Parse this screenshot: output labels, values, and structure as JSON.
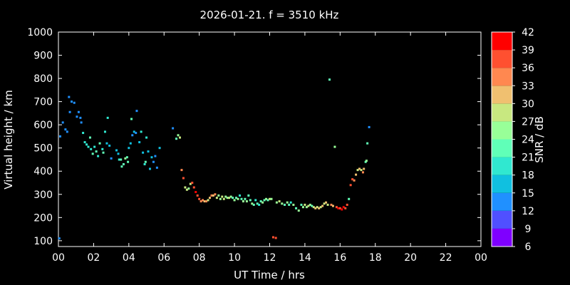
{
  "chart_data": {
    "type": "scatter",
    "title": "2026-01-21. f = 3510 kHz",
    "xlabel": "UT Time / hrs",
    "ylabel": "Virtual height / km",
    "colorbar_label": "SNR / dB",
    "xlim": [
      0,
      24
    ],
    "ylim": [
      75,
      1000
    ],
    "x_ticks": [
      "00",
      "02",
      "04",
      "06",
      "08",
      "10",
      "12",
      "14",
      "16",
      "18",
      "20",
      "22",
      "00"
    ],
    "y_ticks": [
      "100",
      "200",
      "300",
      "400",
      "500",
      "600",
      "700",
      "800",
      "900",
      "1000"
    ],
    "colorbar_ticks": [
      "6",
      "9",
      "12",
      "15",
      "18",
      "21",
      "24",
      "27",
      "30",
      "33",
      "36",
      "39",
      "42"
    ],
    "colorbar_range": [
      6,
      42
    ],
    "grid": false,
    "points": [
      {
        "x": 0.05,
        "y": 110,
        "snr": 12
      },
      {
        "x": 0.1,
        "y": 550,
        "snr": 12
      },
      {
        "x": 0.25,
        "y": 610,
        "snr": 12
      },
      {
        "x": 0.4,
        "y": 580,
        "snr": 12
      },
      {
        "x": 0.5,
        "y": 570,
        "snr": 12
      },
      {
        "x": 0.6,
        "y": 720,
        "snr": 12
      },
      {
        "x": 0.65,
        "y": 655,
        "snr": 12
      },
      {
        "x": 0.75,
        "y": 700,
        "snr": 12
      },
      {
        "x": 0.9,
        "y": 695,
        "snr": 12
      },
      {
        "x": 1.05,
        "y": 635,
        "snr": 12
      },
      {
        "x": 1.15,
        "y": 655,
        "snr": 12
      },
      {
        "x": 1.25,
        "y": 630,
        "snr": 12
      },
      {
        "x": 1.3,
        "y": 610,
        "snr": 12
      },
      {
        "x": 1.4,
        "y": 565,
        "snr": 18
      },
      {
        "x": 1.5,
        "y": 525,
        "snr": 18
      },
      {
        "x": 1.6,
        "y": 515,
        "snr": 18
      },
      {
        "x": 1.7,
        "y": 505,
        "snr": 18
      },
      {
        "x": 1.8,
        "y": 545,
        "snr": 21
      },
      {
        "x": 1.85,
        "y": 495,
        "snr": 18
      },
      {
        "x": 1.95,
        "y": 475,
        "snr": 21
      },
      {
        "x": 2.05,
        "y": 505,
        "snr": 18
      },
      {
        "x": 2.15,
        "y": 485,
        "snr": 21
      },
      {
        "x": 2.25,
        "y": 465,
        "snr": 18
      },
      {
        "x": 2.35,
        "y": 520,
        "snr": 21
      },
      {
        "x": 2.5,
        "y": 495,
        "snr": 18
      },
      {
        "x": 2.55,
        "y": 480,
        "snr": 21
      },
      {
        "x": 2.65,
        "y": 570,
        "snr": 18
      },
      {
        "x": 2.75,
        "y": 520,
        "snr": 15
      },
      {
        "x": 2.8,
        "y": 630,
        "snr": 18
      },
      {
        "x": 2.9,
        "y": 510,
        "snr": 15
      },
      {
        "x": 3.0,
        "y": 455,
        "snr": 12
      },
      {
        "x": 3.3,
        "y": 490,
        "snr": 15
      },
      {
        "x": 3.4,
        "y": 475,
        "snr": 15
      },
      {
        "x": 3.45,
        "y": 450,
        "snr": 18
      },
      {
        "x": 3.55,
        "y": 450,
        "snr": 21
      },
      {
        "x": 3.6,
        "y": 420,
        "snr": 21
      },
      {
        "x": 3.7,
        "y": 430,
        "snr": 21
      },
      {
        "x": 3.8,
        "y": 455,
        "snr": 24
      },
      {
        "x": 3.9,
        "y": 460,
        "snr": 21
      },
      {
        "x": 3.95,
        "y": 440,
        "snr": 21
      },
      {
        "x": 4.0,
        "y": 500,
        "snr": 15
      },
      {
        "x": 4.1,
        "y": 520,
        "snr": 15
      },
      {
        "x": 4.15,
        "y": 625,
        "snr": 21
      },
      {
        "x": 4.2,
        "y": 555,
        "snr": 12
      },
      {
        "x": 4.3,
        "y": 570,
        "snr": 15
      },
      {
        "x": 4.4,
        "y": 565,
        "snr": 12
      },
      {
        "x": 4.45,
        "y": 660,
        "snr": 12
      },
      {
        "x": 4.6,
        "y": 525,
        "snr": 15
      },
      {
        "x": 4.7,
        "y": 570,
        "snr": 18
      },
      {
        "x": 4.8,
        "y": 480,
        "snr": 15
      },
      {
        "x": 4.9,
        "y": 430,
        "snr": 18
      },
      {
        "x": 4.95,
        "y": 440,
        "snr": 21
      },
      {
        "x": 5.0,
        "y": 545,
        "snr": 18
      },
      {
        "x": 5.1,
        "y": 485,
        "snr": 15
      },
      {
        "x": 5.2,
        "y": 410,
        "snr": 15
      },
      {
        "x": 5.3,
        "y": 460,
        "snr": 15
      },
      {
        "x": 5.4,
        "y": 440,
        "snr": 12
      },
      {
        "x": 5.5,
        "y": 465,
        "snr": 12
      },
      {
        "x": 5.6,
        "y": 415,
        "snr": 12
      },
      {
        "x": 5.75,
        "y": 500,
        "snr": 15
      },
      {
        "x": 6.5,
        "y": 585,
        "snr": 12
      },
      {
        "x": 6.7,
        "y": 540,
        "snr": 21
      },
      {
        "x": 6.8,
        "y": 555,
        "snr": 24
      },
      {
        "x": 6.9,
        "y": 545,
        "snr": 27
      },
      {
        "x": 7.0,
        "y": 405,
        "snr": 33
      },
      {
        "x": 7.1,
        "y": 370,
        "snr": 36
      },
      {
        "x": 7.2,
        "y": 330,
        "snr": 27
      },
      {
        "x": 7.3,
        "y": 320,
        "snr": 27
      },
      {
        "x": 7.4,
        "y": 325,
        "snr": 24
      },
      {
        "x": 7.5,
        "y": 345,
        "snr": 27
      },
      {
        "x": 7.6,
        "y": 350,
        "snr": 36
      },
      {
        "x": 7.7,
        "y": 330,
        "snr": 36
      },
      {
        "x": 7.8,
        "y": 310,
        "snr": 39
      },
      {
        "x": 7.9,
        "y": 295,
        "snr": 36
      },
      {
        "x": 8.0,
        "y": 280,
        "snr": 36
      },
      {
        "x": 8.1,
        "y": 270,
        "snr": 33
      },
      {
        "x": 8.2,
        "y": 275,
        "snr": 33
      },
      {
        "x": 8.3,
        "y": 270,
        "snr": 30
      },
      {
        "x": 8.4,
        "y": 270,
        "snr": 33
      },
      {
        "x": 8.5,
        "y": 275,
        "snr": 27
      },
      {
        "x": 8.6,
        "y": 285,
        "snr": 30
      },
      {
        "x": 8.7,
        "y": 295,
        "snr": 33
      },
      {
        "x": 8.8,
        "y": 295,
        "snr": 30
      },
      {
        "x": 8.9,
        "y": 300,
        "snr": 33
      },
      {
        "x": 9.0,
        "y": 285,
        "snr": 27
      },
      {
        "x": 9.1,
        "y": 295,
        "snr": 24
      },
      {
        "x": 9.2,
        "y": 280,
        "snr": 24
      },
      {
        "x": 9.3,
        "y": 290,
        "snr": 27
      },
      {
        "x": 9.4,
        "y": 280,
        "snr": 27
      },
      {
        "x": 9.5,
        "y": 290,
        "snr": 24
      },
      {
        "x": 9.6,
        "y": 285,
        "snr": 24
      },
      {
        "x": 9.7,
        "y": 285,
        "snr": 27
      },
      {
        "x": 9.8,
        "y": 290,
        "snr": 24
      },
      {
        "x": 9.9,
        "y": 285,
        "snr": 21
      },
      {
        "x": 10.0,
        "y": 275,
        "snr": 24
      },
      {
        "x": 10.1,
        "y": 285,
        "snr": 21
      },
      {
        "x": 10.2,
        "y": 280,
        "snr": 24
      },
      {
        "x": 10.3,
        "y": 295,
        "snr": 18
      },
      {
        "x": 10.4,
        "y": 280,
        "snr": 21
      },
      {
        "x": 10.5,
        "y": 270,
        "snr": 24
      },
      {
        "x": 10.6,
        "y": 280,
        "snr": 21
      },
      {
        "x": 10.7,
        "y": 270,
        "snr": 24
      },
      {
        "x": 10.8,
        "y": 295,
        "snr": 21
      },
      {
        "x": 10.9,
        "y": 275,
        "snr": 21
      },
      {
        "x": 11.0,
        "y": 260,
        "snr": 24
      },
      {
        "x": 11.1,
        "y": 255,
        "snr": 21
      },
      {
        "x": 11.2,
        "y": 275,
        "snr": 18
      },
      {
        "x": 11.3,
        "y": 260,
        "snr": 21
      },
      {
        "x": 11.4,
        "y": 255,
        "snr": 18
      },
      {
        "x": 11.5,
        "y": 270,
        "snr": 21
      },
      {
        "x": 11.6,
        "y": 265,
        "snr": 24
      },
      {
        "x": 11.7,
        "y": 275,
        "snr": 21
      },
      {
        "x": 11.8,
        "y": 280,
        "snr": 24
      },
      {
        "x": 11.9,
        "y": 275,
        "snr": 21
      },
      {
        "x": 12.0,
        "y": 280,
        "snr": 27
      },
      {
        "x": 12.1,
        "y": 280,
        "snr": 24
      },
      {
        "x": 12.2,
        "y": 115,
        "snr": 36
      },
      {
        "x": 12.35,
        "y": 112,
        "snr": 36
      },
      {
        "x": 12.4,
        "y": 265,
        "snr": 24
      },
      {
        "x": 12.55,
        "y": 270,
        "snr": 27
      },
      {
        "x": 12.7,
        "y": 260,
        "snr": 24
      },
      {
        "x": 12.85,
        "y": 255,
        "snr": 21
      },
      {
        "x": 13.0,
        "y": 265,
        "snr": 24
      },
      {
        "x": 13.1,
        "y": 255,
        "snr": 21
      },
      {
        "x": 13.2,
        "y": 265,
        "snr": 18
      },
      {
        "x": 13.35,
        "y": 255,
        "snr": 24
      },
      {
        "x": 13.5,
        "y": 240,
        "snr": 21
      },
      {
        "x": 13.65,
        "y": 230,
        "snr": 24
      },
      {
        "x": 13.8,
        "y": 255,
        "snr": 21
      },
      {
        "x": 13.9,
        "y": 245,
        "snr": 24
      },
      {
        "x": 14.0,
        "y": 255,
        "snr": 27
      },
      {
        "x": 14.1,
        "y": 245,
        "snr": 24
      },
      {
        "x": 14.2,
        "y": 250,
        "snr": 27
      },
      {
        "x": 14.3,
        "y": 255,
        "snr": 24
      },
      {
        "x": 14.4,
        "y": 250,
        "snr": 21
      },
      {
        "x": 14.5,
        "y": 245,
        "snr": 27
      },
      {
        "x": 14.6,
        "y": 240,
        "snr": 30
      },
      {
        "x": 14.7,
        "y": 245,
        "snr": 27
      },
      {
        "x": 14.8,
        "y": 240,
        "snr": 30
      },
      {
        "x": 14.9,
        "y": 245,
        "snr": 27
      },
      {
        "x": 15.0,
        "y": 250,
        "snr": 30
      },
      {
        "x": 15.1,
        "y": 260,
        "snr": 27
      },
      {
        "x": 15.2,
        "y": 265,
        "snr": 30
      },
      {
        "x": 15.3,
        "y": 255,
        "snr": 27
      },
      {
        "x": 15.4,
        "y": 795,
        "snr": 21
      },
      {
        "x": 15.5,
        "y": 255,
        "snr": 33
      },
      {
        "x": 15.6,
        "y": 250,
        "snr": 30
      },
      {
        "x": 15.7,
        "y": 505,
        "snr": 24
      },
      {
        "x": 15.8,
        "y": 245,
        "snr": 36
      },
      {
        "x": 15.9,
        "y": 240,
        "snr": 39
      },
      {
        "x": 16.0,
        "y": 240,
        "snr": 36
      },
      {
        "x": 16.1,
        "y": 235,
        "snr": 39
      },
      {
        "x": 16.2,
        "y": 245,
        "snr": 39
      },
      {
        "x": 16.3,
        "y": 240,
        "snr": 36
      },
      {
        "x": 16.4,
        "y": 255,
        "snr": 36
      },
      {
        "x": 16.5,
        "y": 280,
        "snr": 21
      },
      {
        "x": 16.6,
        "y": 340,
        "snr": 36
      },
      {
        "x": 16.7,
        "y": 365,
        "snr": 36
      },
      {
        "x": 16.8,
        "y": 360,
        "snr": 33
      },
      {
        "x": 16.9,
        "y": 385,
        "snr": 30
      },
      {
        "x": 17.0,
        "y": 405,
        "snr": 27
      },
      {
        "x": 17.1,
        "y": 410,
        "snr": 30
      },
      {
        "x": 17.2,
        "y": 405,
        "snr": 27
      },
      {
        "x": 17.3,
        "y": 395,
        "snr": 33
      },
      {
        "x": 17.35,
        "y": 410,
        "snr": 30
      },
      {
        "x": 17.45,
        "y": 440,
        "snr": 21
      },
      {
        "x": 17.5,
        "y": 445,
        "snr": 24
      },
      {
        "x": 17.55,
        "y": 520,
        "snr": 21
      },
      {
        "x": 17.65,
        "y": 590,
        "snr": 12
      }
    ]
  }
}
